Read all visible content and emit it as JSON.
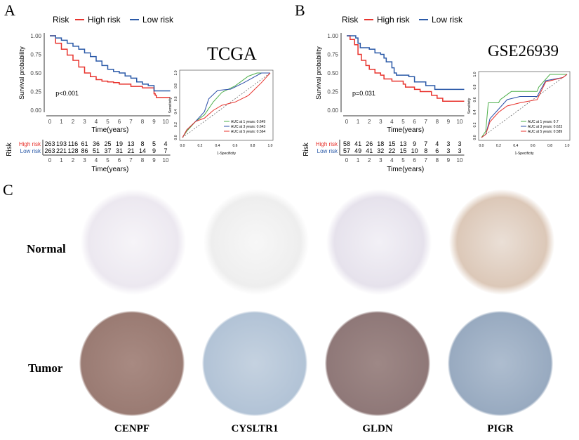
{
  "panels": {
    "a": "A",
    "b": "B",
    "c": "C"
  },
  "chart_data": [
    {
      "type": "line",
      "subtype": "kaplan-meier",
      "dataset": "TCGA",
      "legend_title": "Risk",
      "legend_position": "top",
      "xlabel": "Time(years)",
      "ylabel": "Survival probability",
      "xlim": [
        0,
        10.4
      ],
      "ylim": [
        0,
        1
      ],
      "xticks": [
        0,
        1,
        2,
        3,
        4,
        5,
        6,
        7,
        8,
        9,
        10
      ],
      "yticks": [
        "0.00",
        "0.25",
        "0.50",
        "0.75",
        "1.00"
      ],
      "pvalue": "p<0.001",
      "series": [
        {
          "name": "High risk",
          "color": "#e8332d",
          "points": [
            [
              0,
              1
            ],
            [
              0.5,
              0.9
            ],
            [
              1,
              0.82
            ],
            [
              1.5,
              0.74
            ],
            [
              2,
              0.67
            ],
            [
              2.5,
              0.58
            ],
            [
              3,
              0.5
            ],
            [
              3.5,
              0.45
            ],
            [
              4,
              0.41
            ],
            [
              4.5,
              0.39
            ],
            [
              5,
              0.38
            ],
            [
              5.5,
              0.37
            ],
            [
              6,
              0.35
            ],
            [
              7,
              0.32
            ],
            [
              8,
              0.3
            ],
            [
              9,
              0.22
            ],
            [
              9.1,
              0.2
            ],
            [
              9.2,
              0.17
            ],
            [
              10.4,
              0.17
            ]
          ],
          "at_risk": [
            263,
            193,
            116,
            61,
            36,
            25,
            19,
            13,
            8,
            5,
            4
          ]
        },
        {
          "name": "Low risk",
          "color": "#2b5aa8",
          "points": [
            [
              0,
              1
            ],
            [
              0.5,
              0.97
            ],
            [
              1,
              0.94
            ],
            [
              1.5,
              0.9
            ],
            [
              2,
              0.86
            ],
            [
              2.5,
              0.82
            ],
            [
              3,
              0.77
            ],
            [
              3.5,
              0.72
            ],
            [
              4,
              0.66
            ],
            [
              4.5,
              0.6
            ],
            [
              5,
              0.55
            ],
            [
              5.5,
              0.52
            ],
            [
              6,
              0.5
            ],
            [
              6.5,
              0.46
            ],
            [
              7,
              0.43
            ],
            [
              7.5,
              0.38
            ],
            [
              8,
              0.35
            ],
            [
              8.5,
              0.33
            ],
            [
              9,
              0.26
            ],
            [
              10.4,
              0.26
            ]
          ],
          "at_risk": [
            263,
            221,
            128,
            86,
            51,
            37,
            31,
            21,
            14,
            9,
            7
          ]
        }
      ],
      "risk_table_label": "Risk"
    },
    {
      "type": "line",
      "subtype": "roc",
      "dataset": "TCGA",
      "xlabel": "1-Specificity",
      "ylabel": "Sensitivity",
      "xlim": [
        0,
        1
      ],
      "ylim": [
        0,
        1
      ],
      "ticks": [
        "0.0",
        "0.2",
        "0.4",
        "0.6",
        "0.8",
        "1.0"
      ],
      "legend_position": "bottom-right",
      "series": [
        {
          "name": "AUC at 1 years: 0.649",
          "color": "#4daf4a",
          "points": [
            [
              0,
              0
            ],
            [
              0.05,
              0.1
            ],
            [
              0.15,
              0.25
            ],
            [
              0.25,
              0.35
            ],
            [
              0.35,
              0.55
            ],
            [
              0.45,
              0.7
            ],
            [
              0.6,
              0.8
            ],
            [
              0.75,
              0.95
            ],
            [
              0.85,
              1
            ],
            [
              1,
              1
            ]
          ]
        },
        {
          "name": "AUC at 3 years: 0.643",
          "color": "#2b4fa8",
          "points": [
            [
              0,
              0
            ],
            [
              0.05,
              0.12
            ],
            [
              0.15,
              0.25
            ],
            [
              0.25,
              0.4
            ],
            [
              0.3,
              0.6
            ],
            [
              0.4,
              0.73
            ],
            [
              0.55,
              0.75
            ],
            [
              0.7,
              0.85
            ],
            [
              0.9,
              1
            ],
            [
              1,
              1
            ]
          ]
        },
        {
          "name": "AUC at 5 years: 0.564",
          "color": "#e8332d",
          "points": [
            [
              0,
              0
            ],
            [
              0.05,
              0.12
            ],
            [
              0.15,
              0.25
            ],
            [
              0.25,
              0.3
            ],
            [
              0.35,
              0.42
            ],
            [
              0.45,
              0.5
            ],
            [
              0.6,
              0.55
            ],
            [
              0.75,
              0.65
            ],
            [
              0.9,
              0.85
            ],
            [
              1,
              1
            ]
          ]
        }
      ]
    },
    {
      "type": "line",
      "subtype": "kaplan-meier",
      "dataset": "GSE26939",
      "legend_title": "Risk",
      "legend_position": "top",
      "xlabel": "Time(years)",
      "ylabel": "Survival probability",
      "xlim": [
        0,
        10.4
      ],
      "ylim": [
        0,
        1
      ],
      "xticks": [
        0,
        1,
        2,
        3,
        4,
        5,
        6,
        7,
        8,
        9,
        10
      ],
      "yticks": [
        "0.00",
        "0.25",
        "0.50",
        "0.75",
        "1.00"
      ],
      "pvalue": "p=0.031",
      "series": [
        {
          "name": "High risk",
          "color": "#e8332d",
          "points": [
            [
              0,
              1
            ],
            [
              0.3,
              0.95
            ],
            [
              0.7,
              0.88
            ],
            [
              1,
              0.75
            ],
            [
              1.3,
              0.67
            ],
            [
              1.7,
              0.6
            ],
            [
              2,
              0.55
            ],
            [
              2.5,
              0.5
            ],
            [
              3,
              0.47
            ],
            [
              3.3,
              0.42
            ],
            [
              4,
              0.39
            ],
            [
              5,
              0.35
            ],
            [
              5.2,
              0.31
            ],
            [
              6,
              0.28
            ],
            [
              6.5,
              0.25
            ],
            [
              7.5,
              0.2
            ],
            [
              8,
              0.16
            ],
            [
              8.5,
              0.12
            ],
            [
              10.4,
              0.12
            ]
          ],
          "at_risk": [
            58,
            41,
            26,
            18,
            15,
            13,
            9,
            7,
            4,
            3,
            3
          ]
        },
        {
          "name": "Low risk",
          "color": "#2b5aa8",
          "points": [
            [
              0,
              1
            ],
            [
              0.8,
              0.97
            ],
            [
              1,
              0.9
            ],
            [
              1.2,
              0.84
            ],
            [
              2,
              0.82
            ],
            [
              2.5,
              0.77
            ],
            [
              3,
              0.75
            ],
            [
              3.3,
              0.7
            ],
            [
              3.5,
              0.65
            ],
            [
              4,
              0.57
            ],
            [
              4.2,
              0.5
            ],
            [
              4.4,
              0.47
            ],
            [
              5.5,
              0.45
            ],
            [
              6,
              0.38
            ],
            [
              7,
              0.33
            ],
            [
              7.8,
              0.28
            ],
            [
              10.4,
              0.28
            ]
          ],
          "at_risk": [
            57,
            49,
            41,
            32,
            22,
            15,
            10,
            8,
            6,
            3,
            3
          ]
        }
      ],
      "risk_table_label": "Risk"
    },
    {
      "type": "line",
      "subtype": "roc",
      "dataset": "GSE26939",
      "xlabel": "1-Specificity",
      "ylabel": "Sensitivity",
      "xlim": [
        0,
        1
      ],
      "ylim": [
        0,
        1
      ],
      "ticks": [
        "0.0",
        "0.2",
        "0.4",
        "0.6",
        "0.8",
        "1.0"
      ],
      "legend_position": "bottom-right",
      "series": [
        {
          "name": "AUC at 1 years: 0.7",
          "color": "#4daf4a",
          "points": [
            [
              0,
              0
            ],
            [
              0.05,
              0.1
            ],
            [
              0.08,
              0.55
            ],
            [
              0.2,
              0.55
            ],
            [
              0.22,
              0.6
            ],
            [
              0.35,
              0.73
            ],
            [
              0.65,
              0.73
            ],
            [
              0.67,
              0.8
            ],
            [
              0.8,
              1
            ],
            [
              1,
              1
            ]
          ]
        },
        {
          "name": "AUC at 3 years: 0.623",
          "color": "#2b4fa8",
          "points": [
            [
              0,
              0
            ],
            [
              0.05,
              0.05
            ],
            [
              0.1,
              0.3
            ],
            [
              0.2,
              0.45
            ],
            [
              0.3,
              0.6
            ],
            [
              0.45,
              0.65
            ],
            [
              0.65,
              0.65
            ],
            [
              0.75,
              0.9
            ],
            [
              0.95,
              0.95
            ],
            [
              1,
              1
            ]
          ]
        },
        {
          "name": "AUC at 5 years: 0.589",
          "color": "#e8332d",
          "points": [
            [
              0,
              0
            ],
            [
              0.05,
              0.05
            ],
            [
              0.1,
              0.25
            ],
            [
              0.2,
              0.4
            ],
            [
              0.3,
              0.5
            ],
            [
              0.45,
              0.55
            ],
            [
              0.65,
              0.6
            ],
            [
              0.75,
              0.88
            ],
            [
              0.95,
              0.95
            ],
            [
              1,
              1
            ]
          ]
        }
      ]
    }
  ],
  "ihc": {
    "rows": [
      "Normal",
      "Tumor"
    ],
    "genes": [
      "CENPF",
      "CYSLTR1",
      "GLDN",
      "PIGR"
    ]
  },
  "colors": {
    "high": "#e8332d",
    "low": "#2b5aa8"
  }
}
